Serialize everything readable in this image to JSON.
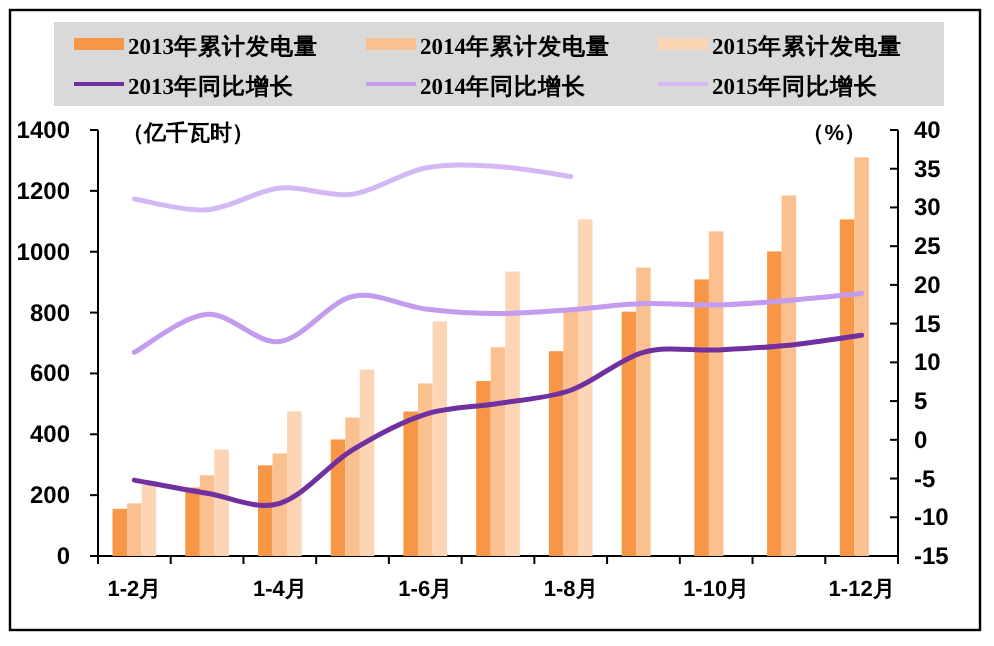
{
  "chart_data": {
    "type": "bar",
    "categories": [
      "1-2月",
      null,
      "1-4月",
      null,
      "1-6月",
      null,
      "1-8月",
      null,
      "1-10月",
      null,
      "1-12月"
    ],
    "ylabel": "（亿千瓦时）",
    "y2label": "（%）",
    "ylim": [
      0,
      1400
    ],
    "yticks": [
      0,
      200,
      400,
      600,
      800,
      1000,
      1200,
      1400
    ],
    "y2lim": [
      -15,
      40
    ],
    "y2ticks": [
      -15,
      -10,
      -5,
      0,
      5,
      10,
      15,
      20,
      25,
      30,
      35,
      40
    ],
    "legend": "top",
    "grid": false,
    "series": [
      {
        "name": "2013年累计发电量",
        "color": "#f79646",
        "values": [
          155,
          225,
          298,
          383,
          475,
          575,
          673,
          803,
          909,
          1001,
          1106
        ]
      },
      {
        "name": "2014年累计发电量",
        "color": "#fac090",
        "values": [
          173,
          265,
          337,
          455,
          567,
          686,
          810,
          948,
          1067,
          1185,
          1310
        ]
      },
      {
        "name": "2015年累计发电量",
        "color": "#fcd5b5",
        "values": [
          234,
          350,
          475,
          613,
          771,
          935,
          1106,
          null,
          null,
          null,
          null
        ]
      },
      {
        "name": "2013年同比增长",
        "type": "line",
        "axis": "y2",
        "color": "#7030a0",
        "values": [
          -5.2,
          -6.9,
          -8.2,
          -1.3,
          3.3,
          4.7,
          6.4,
          11.3,
          11.6,
          12.2,
          13.5
        ]
      },
      {
        "name": "2014年同比增长",
        "type": "line",
        "axis": "y2",
        "color": "#c39bef",
        "values": [
          11.3,
          16.2,
          12.7,
          18.5,
          16.9,
          16.3,
          16.8,
          17.6,
          17.4,
          18.0,
          18.9
        ]
      },
      {
        "name": "2015年同比增长",
        "type": "line",
        "axis": "y2",
        "color": "#d4b8f5",
        "values": [
          31.1,
          29.7,
          32.5,
          31.7,
          35.1,
          35.3,
          34.0,
          null,
          null,
          null,
          null
        ]
      }
    ]
  }
}
